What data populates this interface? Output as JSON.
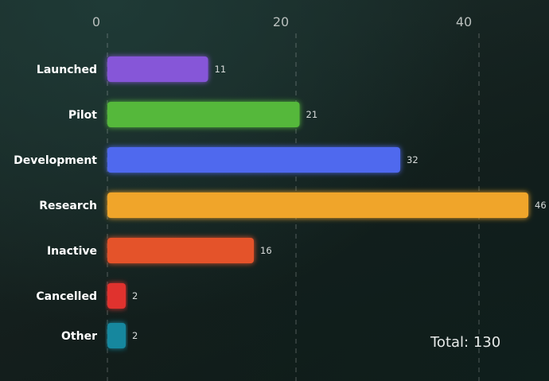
{
  "chart_data": {
    "type": "bar",
    "orientation": "horizontal",
    "categories": [
      "Launched",
      "Pilot",
      "Development",
      "Research",
      "Inactive",
      "Cancelled",
      "Other"
    ],
    "values": [
      11,
      21,
      32,
      46,
      16,
      2,
      2
    ],
    "colors": [
      "#8657d8",
      "#55b83a",
      "#4f69ee",
      "#f0a52a",
      "#e4522a",
      "#e0302e",
      "#14879e"
    ],
    "xticks": [
      0,
      20,
      40
    ],
    "xlim": [
      0,
      50
    ],
    "grid": true,
    "title": "",
    "xlabel": "",
    "ylabel": "",
    "legend": "none"
  },
  "total_label": "Total: 130"
}
